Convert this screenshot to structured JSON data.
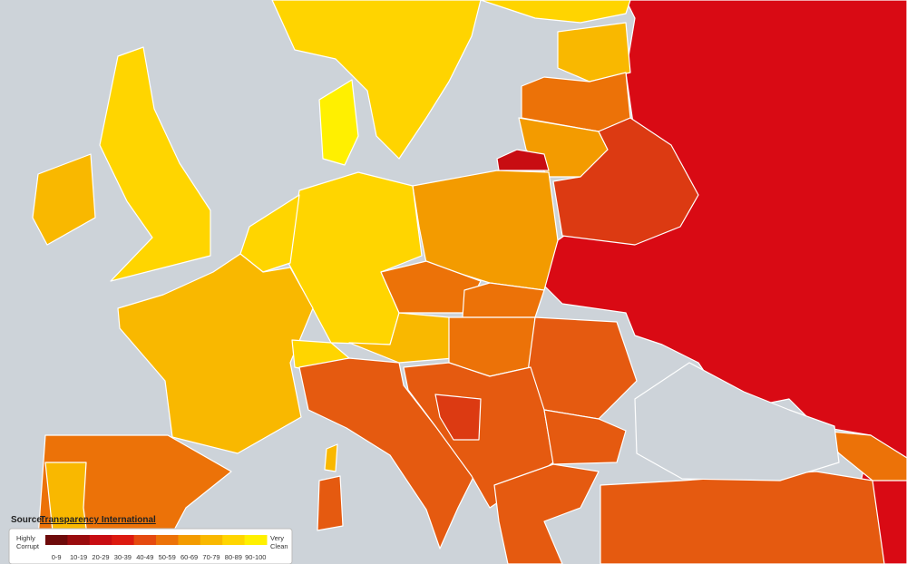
{
  "source": {
    "label": "Source:",
    "link": "Transparency International"
  },
  "legend": {
    "low": [
      "Highly",
      "Corrupt"
    ],
    "high": [
      "Very",
      "Clean"
    ],
    "bins": [
      {
        "label": "0-9",
        "color": "#6e0b0b"
      },
      {
        "label": "10-19",
        "color": "#9a0c0e"
      },
      {
        "label": "20-29",
        "color": "#c80d12"
      },
      {
        "label": "30-39",
        "color": "#dc1a10"
      },
      {
        "label": "40-49",
        "color": "#e54a10"
      },
      {
        "label": "50-59",
        "color": "#ec7208"
      },
      {
        "label": "60-69",
        "color": "#f39b00"
      },
      {
        "label": "70-79",
        "color": "#f9b800"
      },
      {
        "label": "80-89",
        "color": "#ffd500"
      },
      {
        "label": "90-100",
        "color": "#fff000"
      }
    ]
  }
}
